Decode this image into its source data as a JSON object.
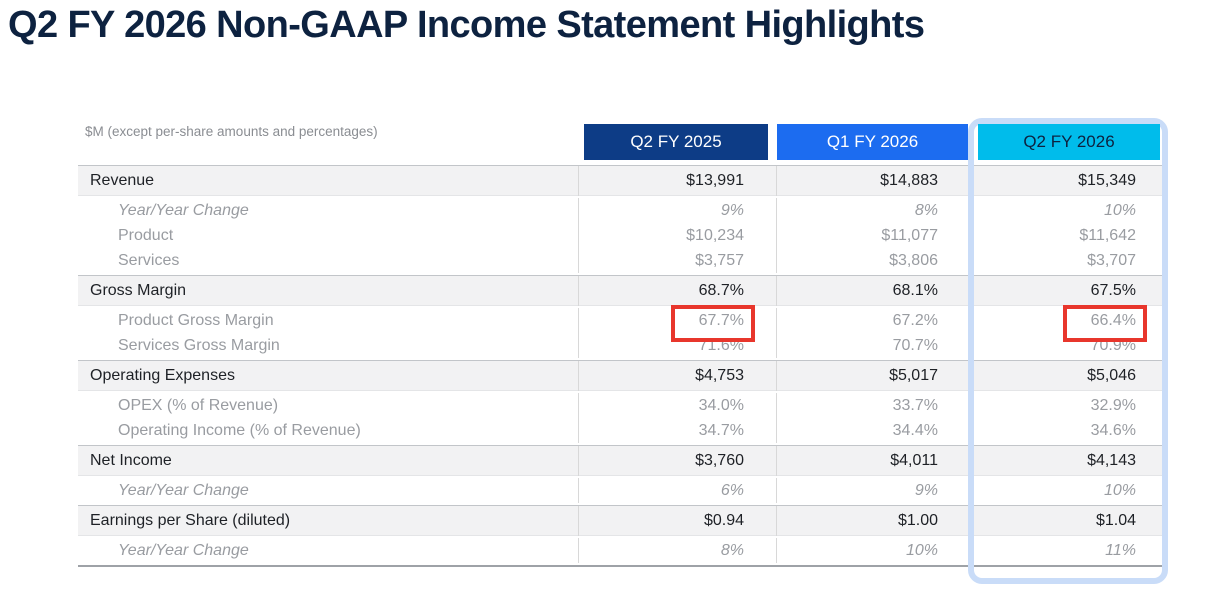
{
  "title": "Q2 FY 2026 Non-GAAP Income Statement Highlights",
  "table": {
    "note": "$M (except per-share amounts and percentages)",
    "columns": [
      {
        "label": "Q2 FY 2025",
        "highlighted": false
      },
      {
        "label": "Q1 FY 2026",
        "highlighted": false
      },
      {
        "label": "Q2 FY 2026",
        "highlighted": true
      }
    ],
    "sections": [
      {
        "label": "Revenue",
        "values": [
          "$13,991",
          "$14,883",
          "$15,349"
        ],
        "subrows": [
          {
            "label": "Year/Year Change",
            "style": "italic",
            "values": [
              "9%",
              "8%",
              "10%"
            ]
          },
          {
            "label": "Product",
            "style": "normal",
            "values": [
              "$10,234",
              "$11,077",
              "$11,642"
            ]
          },
          {
            "label": "Services",
            "style": "normal",
            "values": [
              "$3,757",
              "$3,806",
              "$3,707"
            ]
          }
        ]
      },
      {
        "label": "Gross Margin",
        "values": [
          "68.7%",
          "68.1%",
          "67.5%"
        ],
        "subrows": [
          {
            "label": "Product Gross Margin",
            "style": "normal",
            "values": [
              "67.7%",
              "67.2%",
              "66.4%"
            ],
            "red_boxed_value_indexes": [
              0,
              2
            ]
          },
          {
            "label": "Services Gross Margin",
            "style": "normal",
            "values": [
              "71.6%",
              "70.7%",
              "70.9%"
            ]
          }
        ]
      },
      {
        "label": "Operating Expenses",
        "values": [
          "$4,753",
          "$5,017",
          "$5,046"
        ],
        "subrows": [
          {
            "label": "OPEX (% of Revenue)",
            "style": "normal",
            "values": [
              "34.0%",
              "33.7%",
              "32.9%"
            ]
          },
          {
            "label": "Operating Income (% of Revenue)",
            "style": "normal",
            "values": [
              "34.7%",
              "34.4%",
              "34.6%"
            ]
          }
        ]
      },
      {
        "label": "Net Income",
        "values": [
          "$3,760",
          "$4,011",
          "$4,143"
        ],
        "subrows": [
          {
            "label": "Year/Year Change",
            "style": "italic",
            "values": [
              "6%",
              "9%",
              "10%"
            ]
          }
        ]
      },
      {
        "label": "Earnings per Share (diluted)",
        "values": [
          "$0.94",
          "$1.00",
          "$1.04"
        ],
        "subrows": [
          {
            "label": "Year/Year Change",
            "style": "italic",
            "values": [
              "8%",
              "10%",
              "11%"
            ]
          }
        ]
      }
    ]
  },
  "colors": {
    "title_text": "#0D2240",
    "header_q2_fy_2025_bg": "#0D3C86",
    "header_q1_fy_2026_bg": "#1C6CF0",
    "header_q2_fy_2026_bg": "#00BCEB",
    "header_q2_fy_2026_text": "#0D2240",
    "highlight_column_outline": "#C9DCF8",
    "red_annotation_box": "#E8362C",
    "section_row_bg": "#F2F2F3",
    "primary_text": "#1E2126",
    "secondary_text": "#999CA1"
  }
}
